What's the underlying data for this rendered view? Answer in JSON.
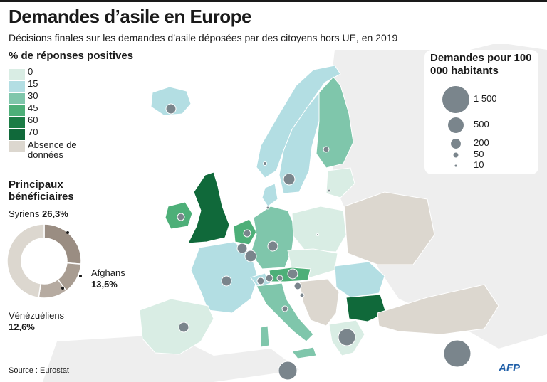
{
  "title": "Demandes d’asile en Europe",
  "subtitle": "Décisions finales sur les demandes d’asile déposées par des citoyens hors UE, en 2019",
  "color_legend": {
    "title": "% de réponses positives",
    "steps": [
      {
        "label": "0",
        "color": "#d9ede4"
      },
      {
        "label": "15",
        "color": "#b3dee3"
      },
      {
        "label": "30",
        "color": "#7fc6ab"
      },
      {
        "label": "45",
        "color": "#4daf78"
      },
      {
        "label": "60",
        "color": "#1b7c45"
      },
      {
        "label": "70",
        "color": "#10693a"
      }
    ],
    "no_data_label": "Absence de données",
    "no_data_color": "#dcd7cf"
  },
  "bubble_legend": {
    "title": "Demandes pour 100 000 habitants",
    "items": [
      {
        "label": "1 500",
        "value": 1500
      },
      {
        "label": "500",
        "value": 500
      },
      {
        "label": "200",
        "value": 200
      },
      {
        "label": "50",
        "value": 50
      },
      {
        "label": "10",
        "value": 10
      }
    ],
    "color": "#7a858c"
  },
  "beneficiaries": {
    "title": "Principaux bénéficiaires",
    "segments": [
      {
        "name": "Syriens",
        "pct_label": "26,3%",
        "value": 26.3,
        "color": "#9a8d82"
      },
      {
        "name": "Afghans",
        "pct_label": "13,5%",
        "value": 13.5,
        "color": "#a89c91"
      },
      {
        "name": "Vénézuéliens",
        "pct_label": "12,6%",
        "value": 12.6,
        "color": "#b6aba1"
      },
      {
        "name": "",
        "pct_label": "",
        "value": 47.6,
        "color": "#dcd7cf"
      }
    ]
  },
  "source": "Source : Eurostat",
  "agency": "AFP",
  "colors": {
    "sea": "#ffffff",
    "non_eu": "#eeeeee",
    "border": "#ffffff"
  }
}
